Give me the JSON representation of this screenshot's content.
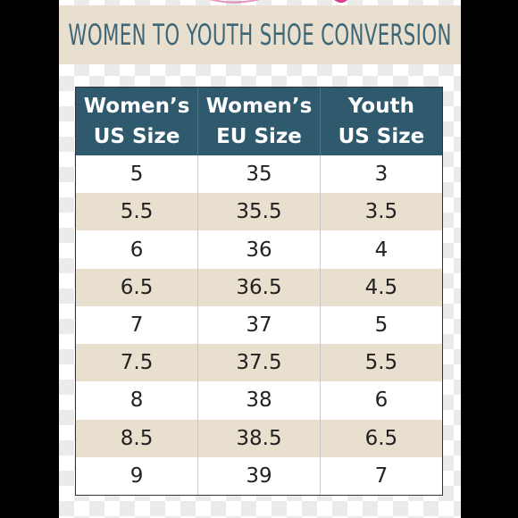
{
  "banner": {
    "title": "WOMEN TO YOUTH SHOE CONVERSION"
  },
  "colors": {
    "header_bg": "#2f5a6e",
    "title_text": "#3d6677",
    "banner_bg": "#e8dfcf",
    "stripe": "#e8dfcf",
    "logo_accent": "#d83d8c"
  },
  "table": {
    "headers": [
      {
        "line1": "Women’s",
        "line2": "US Size"
      },
      {
        "line1": "Women’s",
        "line2": "EU Size"
      },
      {
        "line1": "Youth",
        "line2": "US Size"
      }
    ],
    "rows": [
      [
        "5",
        "35",
        "3"
      ],
      [
        "5.5",
        "35.5",
        "3.5"
      ],
      [
        "6",
        "36",
        "4"
      ],
      [
        "6.5",
        "36.5",
        "4.5"
      ],
      [
        "7",
        "37",
        "5"
      ],
      [
        "7.5",
        "37.5",
        "5.5"
      ],
      [
        "8",
        "38",
        "6"
      ],
      [
        "8.5",
        "38.5",
        "6.5"
      ],
      [
        "9",
        "39",
        "7"
      ]
    ]
  }
}
